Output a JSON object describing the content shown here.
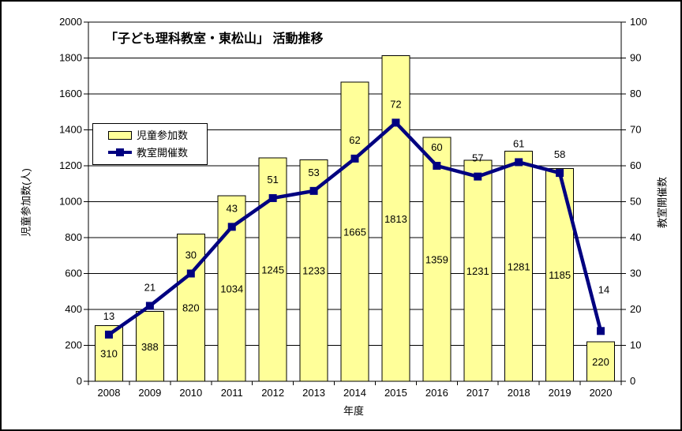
{
  "window": {
    "background": "#FFFFFF",
    "border_color": "#000000"
  },
  "title": "「子ども理科教室・東松山」 活動推移",
  "chart_data": {
    "type": "bar+line",
    "categories": [
      "2008",
      "2009",
      "2010",
      "2011",
      "2012",
      "2013",
      "2014",
      "2015",
      "2016",
      "2017",
      "2018",
      "2019",
      "2020"
    ],
    "series": [
      {
        "name": "児童参加数",
        "type": "bar",
        "axis": "left",
        "color": "#FFFF99",
        "border_color": "#000000",
        "values": [
          310,
          388,
          820,
          1034,
          1245,
          1233,
          1665,
          1813,
          1359,
          1231,
          1281,
          1185,
          220
        ]
      },
      {
        "name": "教室開催数",
        "type": "line",
        "axis": "right",
        "color": "#000080",
        "marker": "square",
        "values": [
          13,
          21,
          30,
          43,
          51,
          53,
          62,
          72,
          60,
          57,
          61,
          58,
          14
        ]
      }
    ],
    "left_axis": {
      "label": "児童参加数(人)",
      "min": 0,
      "max": 2000,
      "step": 200
    },
    "right_axis": {
      "label": "教室開催数",
      "min": 0,
      "max": 100,
      "step": 10
    },
    "x_axis": {
      "label": "年度"
    },
    "legend": {
      "position": "middle-left",
      "entries": [
        "児童参加数",
        "教室開催数"
      ]
    },
    "grid": true,
    "data_labels": true,
    "line_label_offsets": {
      "12": [
        4,
        -48
      ]
    }
  }
}
